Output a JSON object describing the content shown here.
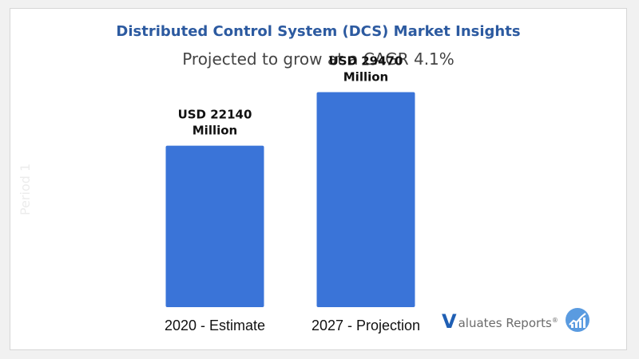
{
  "chart_data": {
    "type": "bar",
    "title": "Distributed Control System (DCS) Market Insights",
    "subtitle": "Projected to grow at a CAGR 4.1%",
    "categories": [
      "2020 - Estimate",
      "2027  - Projection"
    ],
    "values": [
      22140,
      29470
    ],
    "data_labels": [
      [
        "USD 22140",
        "Million"
      ],
      [
        "USD 29470",
        "Million"
      ]
    ],
    "ylim": [
      0,
      35000
    ],
    "bar_color": "#3a74d8",
    "grid": false,
    "legend": "none"
  },
  "watermark": "Period 1",
  "logo": {
    "initial": "V",
    "text": "aluates Reports",
    "mark": "®",
    "icon": "chart-circle-icon"
  }
}
